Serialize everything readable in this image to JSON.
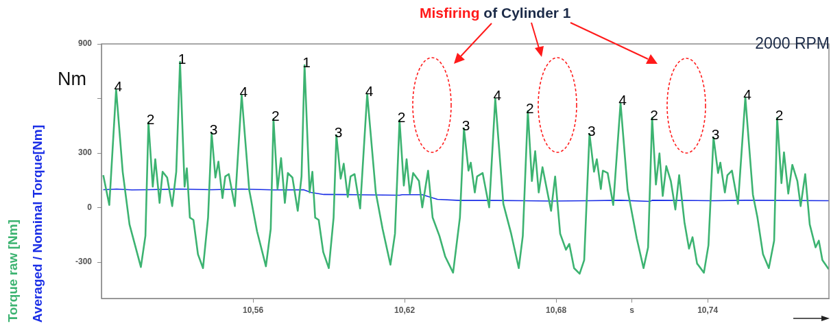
{
  "chart_data": {
    "type": "line",
    "title": "Misfiring of Cylinder 1",
    "ylabel": "Nm",
    "xlim": [
      10.5,
      10.788
    ],
    "xticks": [
      {
        "value": 10.56,
        "label": "10,56"
      },
      {
        "value": 10.62,
        "label": "10,62"
      },
      {
        "value": 10.68,
        "label": "10,68"
      },
      {
        "value": 10.71,
        "label": "s"
      },
      {
        "value": 10.74,
        "label": "10,74"
      }
    ],
    "ylim": [
      -500,
      900
    ],
    "yticks": [
      -300,
      0,
      300,
      {
        "value": 600,
        "label": null
      },
      900
    ],
    "grid": false,
    "legend": "left",
    "marker": "none",
    "line_style": "solid",
    "series": [
      {
        "name": "Torque raw [Nm]",
        "color": "#3cb371",
        "x": [
          10.5007,
          10.5031,
          10.5058,
          10.5084,
          10.5111,
          10.5156,
          10.5174,
          10.5186,
          10.5203,
          10.5213,
          10.523,
          10.5242,
          10.526,
          10.528,
          10.5296,
          10.5311,
          10.5329,
          10.5338,
          10.535,
          10.5364,
          10.5382,
          10.5402,
          10.5422,
          10.5436,
          10.5451,
          10.5463,
          10.5479,
          10.549,
          10.5504,
          10.5528,
          10.5555,
          10.5585,
          10.5616,
          10.5651,
          10.567,
          10.5681,
          10.5697,
          10.5711,
          10.5726,
          10.5738,
          10.5756,
          10.5777,
          10.5792,
          10.5804,
          10.5824,
          10.5835,
          10.5846,
          10.586,
          10.5878,
          10.59,
          10.5919,
          10.593,
          10.5947,
          10.5959,
          10.5975,
          10.5986,
          10.6002,
          10.6024,
          10.6052,
          10.6086,
          10.6113,
          10.6144,
          10.6162,
          10.618,
          10.6197,
          10.6208,
          10.6221,
          10.6234,
          10.6257,
          10.627,
          10.6293,
          10.6311,
          10.6338,
          10.6361,
          10.6392,
          10.6419,
          10.6435,
          10.6453,
          10.6462,
          10.6478,
          10.6487,
          10.6509,
          10.6535,
          10.6559,
          10.6591,
          10.6622,
          10.6652,
          10.6668,
          10.6688,
          10.6704,
          10.6717,
          10.6731,
          10.6746,
          10.678,
          10.6796,
          10.6816,
          10.6839,
          10.6852,
          10.6871,
          10.6893,
          10.6911,
          10.6932,
          10.695,
          10.6961,
          10.6977,
          10.6985,
          10.7004,
          10.7026,
          10.7055,
          10.7083,
          10.7119,
          10.7146,
          10.7164,
          10.718,
          10.7195,
          10.7209,
          10.7222,
          10.7236,
          10.7254,
          10.7272,
          10.7287,
          10.7308,
          10.7326,
          10.734,
          10.7358,
          10.7385,
          10.7403,
          10.7423,
          10.7441,
          10.745,
          10.7468,
          10.7478,
          10.7496,
          10.752,
          10.7549,
          10.7579,
          10.7597,
          10.7619,
          10.7642,
          10.7663,
          10.7675,
          10.7692,
          10.7702,
          10.7719,
          10.7735,
          10.7755,
          10.7768,
          10.7786,
          10.7804,
          10.7827,
          10.784,
          10.7854,
          10.7879
        ],
        "values": [
          178,
          14,
          651,
          197,
          -93,
          -327,
          -155,
          468,
          115,
          266,
          26,
          197,
          165,
          8,
          197,
          802,
          115,
          216,
          -55,
          -68,
          -257,
          -333,
          -55,
          411,
          165,
          253,
          52,
          171,
          184,
          8,
          619,
          96,
          -131,
          -323,
          -118,
          487,
          102,
          272,
          26,
          190,
          165,
          -18,
          171,
          783,
          83,
          197,
          -55,
          -68,
          -245,
          -333,
          -55,
          398,
          159,
          241,
          58,
          171,
          184,
          -5,
          625,
          83,
          -118,
          -314,
          -144,
          480,
          121,
          266,
          77,
          190,
          146,
          1,
          203,
          -55,
          -156,
          -270,
          -358,
          -55,
          436,
          203,
          247,
          83,
          171,
          190,
          1,
          600,
          20,
          -144,
          -333,
          -156,
          531,
          146,
          310,
          83,
          222,
          -18,
          171,
          -144,
          -232,
          -200,
          -333,
          -364,
          -289,
          405,
          197,
          266,
          102,
          203,
          190,
          14,
          575,
          96,
          -169,
          -333,
          -219,
          493,
          127,
          298,
          64,
          228,
          146,
          -11,
          178,
          -81,
          -226,
          -163,
          -308,
          -358,
          -207,
          386,
          190,
          247,
          83,
          178,
          203,
          20,
          606,
          71,
          -55,
          -257,
          -333,
          -182,
          493,
          134,
          304,
          77,
          235,
          146,
          8,
          184,
          -93,
          -219,
          -182,
          -289,
          -339
        ]
      },
      {
        "name": "Averaged / Nominal Torque[Nm]",
        "color": "#1a2ee6",
        "x": [
          10.5007,
          10.5035,
          10.506,
          10.512,
          10.518,
          10.5311,
          10.5436,
          10.5555,
          10.5681,
          10.58,
          10.583,
          10.588,
          10.6,
          10.618,
          10.619,
          10.627,
          10.633,
          10.642,
          10.656,
          10.678,
          10.693,
          10.7055,
          10.717,
          10.718,
          10.742,
          10.755,
          10.788
        ],
        "values": [
          98,
          100,
          102,
          97,
          98,
          102,
          98,
          102,
          97,
          98,
          83,
          72,
          71,
          68,
          71,
          71,
          45,
          39,
          39,
          36,
          38,
          40,
          34,
          40,
          38,
          40,
          38
        ]
      }
    ],
    "annotations": [
      "2000 RPM",
      {
        "text": "4",
        "x": 10.5058,
        "y": 651
      },
      {
        "text": "2",
        "x": 10.5186,
        "y": 468
      },
      {
        "text": "1",
        "x": 10.5311,
        "y": 802
      },
      {
        "text": "3",
        "x": 10.5436,
        "y": 411
      },
      {
        "text": "4",
        "x": 10.5555,
        "y": 619
      },
      {
        "text": "2",
        "x": 10.5681,
        "y": 487
      },
      {
        "text": "1",
        "x": 10.5804,
        "y": 783
      },
      {
        "text": "3",
        "x": 10.593,
        "y": 398
      },
      {
        "text": "4",
        "x": 10.6052,
        "y": 625
      },
      {
        "text": "2",
        "x": 10.618,
        "y": 480
      },
      {
        "text": "3",
        "x": 10.6435,
        "y": 436
      },
      {
        "text": "4",
        "x": 10.6559,
        "y": 600
      },
      {
        "text": "2",
        "x": 10.6688,
        "y": 531
      },
      {
        "text": "3",
        "x": 10.6932,
        "y": 405
      },
      {
        "text": "4",
        "x": 10.7055,
        "y": 575
      },
      {
        "text": "2",
        "x": 10.718,
        "y": 493
      },
      {
        "text": "3",
        "x": 10.7423,
        "y": 386
      },
      {
        "text": "4",
        "x": 10.7549,
        "y": 606
      },
      {
        "text": "2",
        "x": 10.7675,
        "y": 493
      }
    ]
  }
}
